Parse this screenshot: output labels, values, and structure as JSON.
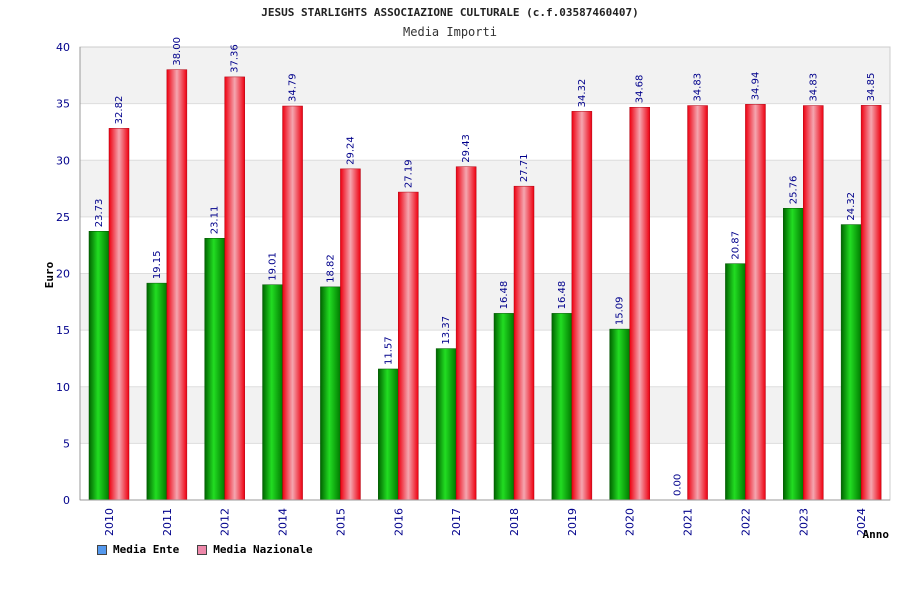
{
  "title": "JESUS STARLIGHTS ASSOCIAZIONE CULTURALE (c.f.03587460407)",
  "subtitle": "Media Importi",
  "colors": {
    "ente": "#0aa00a",
    "nazionale": "#e8101e",
    "legend_ente": "#5599ee",
    "legend_nazionale": "#ee88aa",
    "axis_text": "#00008b",
    "band": "#f2f2f2"
  },
  "legend": [
    {
      "label": "Media Ente",
      "color": "#5599ee"
    },
    {
      "label": "Media Nazionale",
      "color": "#ee88aa"
    }
  ],
  "chart_data": {
    "type": "bar",
    "title": "JESUS STARLIGHTS ASSOCIAZIONE CULTURALE (c.f.03587460407)",
    "subtitle": "Media Importi",
    "xlabel": "Anno",
    "ylabel": "Euro",
    "ylim": [
      0,
      40
    ],
    "yticks": [
      0,
      5,
      10,
      15,
      20,
      25,
      30,
      35,
      40
    ],
    "grid": true,
    "legend_position": "bottom-left",
    "categories": [
      "2010",
      "2011",
      "2012",
      "2014",
      "2015",
      "2016",
      "2017",
      "2018",
      "2019",
      "2020",
      "2021",
      "2022",
      "2023",
      "2024"
    ],
    "series": [
      {
        "name": "Media Ente",
        "values": [
          23.73,
          19.15,
          23.11,
          19.01,
          18.82,
          11.57,
          13.37,
          16.48,
          16.48,
          15.09,
          0.0,
          20.87,
          25.76,
          24.32
        ]
      },
      {
        "name": "Media Nazionale",
        "values": [
          32.82,
          38.0,
          37.36,
          34.79,
          29.24,
          27.19,
          29.43,
          27.71,
          34.32,
          34.68,
          34.83,
          34.94,
          34.83,
          34.85
        ]
      }
    ]
  }
}
